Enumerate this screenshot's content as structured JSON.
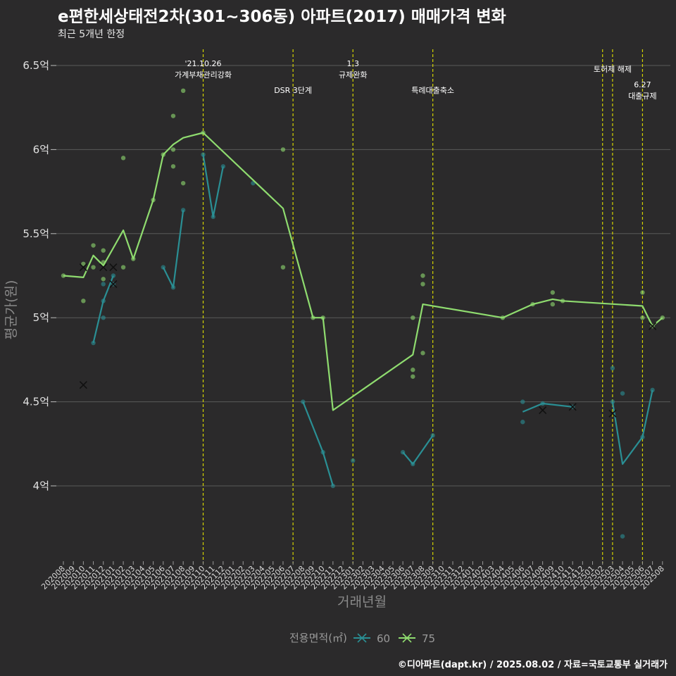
{
  "chart_data": {
    "type": "line",
    "title": "e편한세상태전2차(301~306동) 아파트(2017) 매매가격 변화",
    "subtitle": "최근 5개년 한정",
    "caption": "©디아파트(dapt.kr) / 2025.08.02 / 자료=국토교통부 실거래가",
    "xlabel": "거래년월",
    "ylabel": "평균가(원)",
    "ylim": [
      3.58,
      6.6
    ],
    "y_ticks": [
      {
        "value": 4.0,
        "label": "4억"
      },
      {
        "value": 4.5,
        "label": "4.5억"
      },
      {
        "value": 5.0,
        "label": "5억"
      },
      {
        "value": 5.5,
        "label": "5.5억"
      },
      {
        "value": 6.0,
        "label": "6억"
      },
      {
        "value": 6.5,
        "label": "6.5억"
      }
    ],
    "x_labels": [
      "202008",
      "202009",
      "202010",
      "202011",
      "202012",
      "202101",
      "202102",
      "202103",
      "202104",
      "202105",
      "202106",
      "202107",
      "202108",
      "202109",
      "202110",
      "202111",
      "202112",
      "202201",
      "202202",
      "202203",
      "202204",
      "202205",
      "202206",
      "202207",
      "202208",
      "202209",
      "202210",
      "202211",
      "202212",
      "202301",
      "202302",
      "202303",
      "202304",
      "202305",
      "202306",
      "202307",
      "202308",
      "202309",
      "202310",
      "202311",
      "202312",
      "202401",
      "202402",
      "202403",
      "202404",
      "202405",
      "202406",
      "202407",
      "202408",
      "202409",
      "202410",
      "202411",
      "202412",
      "202501",
      "202502",
      "202503",
      "202504",
      "202505",
      "202506",
      "202507",
      "202508"
    ],
    "legend_title": "전용면적(㎡)",
    "series": [
      {
        "name": "60",
        "color": "#2a8f94",
        "segments": [
          [
            [
              3,
              4.85
            ],
            [
              4,
              5.1
            ],
            [
              5,
              5.25
            ]
          ],
          [
            [
              10,
              5.3
            ],
            [
              11,
              5.18
            ],
            [
              12,
              5.64
            ]
          ],
          [
            [
              14,
              5.97
            ],
            [
              15,
              5.6
            ],
            [
              16,
              5.9
            ]
          ],
          [
            [
              24,
              4.5
            ],
            [
              26,
              4.2
            ],
            [
              27,
              4.0
            ]
          ],
          [
            [
              34,
              4.2
            ],
            [
              35,
              4.13
            ],
            [
              37,
              4.3
            ]
          ],
          [
            [
              46,
              4.44
            ],
            [
              48,
              4.49
            ],
            [
              51,
              4.47
            ]
          ],
          [
            [
              55,
              4.5
            ],
            [
              56,
              4.13
            ],
            [
              58,
              4.29
            ],
            [
              59,
              4.57
            ]
          ]
        ],
        "points": [
          [
            3,
            4.85
          ],
          [
            4,
            5.0
          ],
          [
            4,
            5.1
          ],
          [
            4,
            5.2
          ],
          [
            5,
            5.2
          ],
          [
            5,
            5.25
          ],
          [
            10,
            5.3
          ],
          [
            11,
            5.18
          ],
          [
            12,
            5.64
          ],
          [
            14,
            5.97
          ],
          [
            15,
            5.6
          ],
          [
            16,
            5.9
          ],
          [
            19,
            5.8
          ],
          [
            24,
            4.5
          ],
          [
            26,
            4.2
          ],
          [
            27,
            4.0
          ],
          [
            29,
            4.15
          ],
          [
            34,
            4.2
          ],
          [
            35,
            4.13
          ],
          [
            37,
            4.3
          ],
          [
            46,
            4.5
          ],
          [
            46,
            4.38
          ],
          [
            48,
            4.49
          ],
          [
            51,
            4.47
          ],
          [
            55,
            4.7
          ],
          [
            55,
            4.5
          ],
          [
            56,
            4.55
          ],
          [
            56,
            3.7
          ],
          [
            58,
            4.29
          ],
          [
            59,
            4.57
          ]
        ],
        "crosses": [
          [
            2,
            4.6
          ],
          [
            5,
            5.2
          ],
          [
            48,
            4.45
          ],
          [
            51,
            4.47
          ],
          [
            55,
            4.43
          ]
        ]
      },
      {
        "name": "75",
        "color": "#8fdc6f",
        "segments": [
          [
            [
              0,
              5.25
            ],
            [
              2,
              5.24
            ],
            [
              3,
              5.37
            ],
            [
              4,
              5.31
            ],
            [
              6,
              5.52
            ],
            [
              7,
              5.35
            ],
            [
              9,
              5.7
            ],
            [
              10,
              5.97
            ],
            [
              11,
              6.03
            ],
            [
              12,
              6.07
            ],
            [
              14,
              6.1
            ],
            [
              22,
              5.65
            ],
            [
              25,
              5.0
            ],
            [
              26,
              5.0
            ],
            [
              27,
              4.45
            ],
            [
              35,
              4.78
            ],
            [
              36,
              5.08
            ],
            [
              44,
              5.0
            ],
            [
              47,
              5.08
            ],
            [
              49,
              5.11
            ],
            [
              50,
              5.1
            ],
            [
              58,
              5.07
            ],
            [
              59,
              4.95
            ],
            [
              60,
              5.0
            ]
          ]
        ],
        "points": [
          [
            0,
            5.25
          ],
          [
            2,
            5.32
          ],
          [
            2,
            5.1
          ],
          [
            3,
            5.43
          ],
          [
            3,
            5.3
          ],
          [
            4,
            5.4
          ],
          [
            4,
            5.33
          ],
          [
            4,
            5.23
          ],
          [
            6,
            5.95
          ],
          [
            6,
            5.3
          ],
          [
            7,
            5.35
          ],
          [
            9,
            5.7
          ],
          [
            10,
            5.97
          ],
          [
            11,
            6.2
          ],
          [
            11,
            6.0
          ],
          [
            11,
            5.9
          ],
          [
            12,
            6.35
          ],
          [
            12,
            5.8
          ],
          [
            14,
            6.1
          ],
          [
            22,
            6.0
          ],
          [
            22,
            5.3
          ],
          [
            25,
            5.0
          ],
          [
            26,
            5.0
          ],
          [
            35,
            5.0
          ],
          [
            35,
            4.69
          ],
          [
            35,
            4.65
          ],
          [
            36,
            5.25
          ],
          [
            36,
            5.2
          ],
          [
            36,
            4.79
          ],
          [
            44,
            5.0
          ],
          [
            47,
            5.08
          ],
          [
            49,
            5.15
          ],
          [
            49,
            5.08
          ],
          [
            50,
            5.1
          ],
          [
            58,
            5.15
          ],
          [
            58,
            5.0
          ],
          [
            59,
            4.95
          ],
          [
            60,
            5.0
          ]
        ],
        "crosses": [
          [
            2,
            5.3
          ],
          [
            4,
            5.3
          ],
          [
            5,
            5.3
          ],
          [
            59,
            4.95
          ]
        ]
      }
    ],
    "events": [
      {
        "x": 14,
        "lines": [
          "'21.10.26",
          "가계부채관리강화"
        ],
        "row": 1
      },
      {
        "x": 23,
        "lines": [
          "DSR 3단계"
        ],
        "row": 2
      },
      {
        "x": 29,
        "lines": [
          "1.3",
          "규제완화"
        ],
        "row": 1
      },
      {
        "x": 37,
        "lines": [
          "특례대출축소"
        ],
        "row": 2
      },
      {
        "x": 54,
        "lines": [],
        "row": 1
      },
      {
        "x": 55,
        "lines": [
          "토허제 해제"
        ],
        "row": 1.5
      },
      {
        "x": 58,
        "lines": [
          "6.27",
          "대출규제"
        ],
        "row": 2
      }
    ]
  }
}
